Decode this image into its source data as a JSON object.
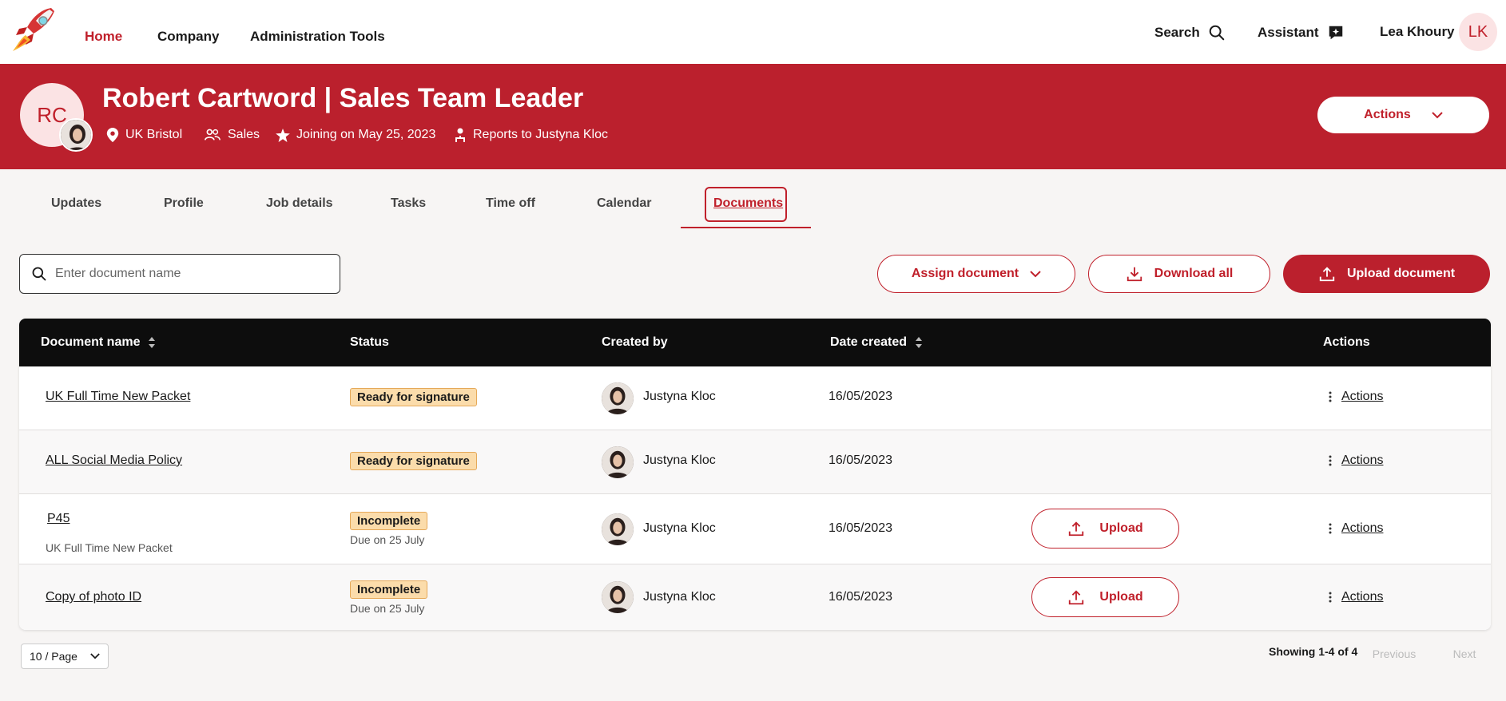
{
  "nav": {
    "links": [
      "Home",
      "Company",
      "Administration Tools"
    ],
    "search_label": "Search",
    "assistant_label": "Assistant",
    "user_name": "Lea Khoury",
    "user_initials": "LK"
  },
  "employee": {
    "initials": "RC",
    "title": "Robert Cartword | Sales Team Leader",
    "location": "UK Bristol",
    "department": "Sales",
    "joining": "Joining on May 25, 2023",
    "reports_to": "Reports to Justyna Kloc",
    "actions_label": "Actions"
  },
  "tabs": [
    "Updates",
    "Profile",
    "Job details",
    "Tasks",
    "Time off",
    "Calendar",
    "Documents"
  ],
  "toolbar": {
    "search_placeholder": "Enter document name",
    "assign_label": "Assign document",
    "download_label": "Download all",
    "upload_label": "Upload document"
  },
  "table": {
    "headers": {
      "name": "Document name",
      "status": "Status",
      "created_by": "Created by",
      "date": "Date created",
      "actions": "Actions"
    },
    "rows": [
      {
        "name": "UK Full Time New Packet",
        "sub": "",
        "status": "Ready for signature",
        "due": "",
        "creator": "Justyna Kloc",
        "date": "16/05/2023",
        "upload": "",
        "actions": "Actions"
      },
      {
        "name": "ALL Social Media Policy",
        "sub": "",
        "status": "Ready for signature",
        "due": "",
        "creator": "Justyna Kloc",
        "date": "16/05/2023",
        "upload": "",
        "actions": "Actions"
      },
      {
        "name": "P45",
        "sub": "UK Full Time New Packet",
        "status": "Incomplete",
        "due": "Due on 25 July",
        "creator": "Justyna Kloc",
        "date": "16/05/2023",
        "upload": "Upload",
        "actions": "Actions"
      },
      {
        "name": "Copy of photo ID",
        "sub": "",
        "status": "Incomplete",
        "due": "Due on 25 July",
        "creator": "Justyna Kloc",
        "date": "16/05/2023",
        "upload": "Upload",
        "actions": "Actions"
      }
    ]
  },
  "pagination": {
    "per_page": "10 / Page",
    "showing": "Showing 1-4 of 4",
    "previous": "Previous",
    "next": "Next"
  },
  "colors": {
    "brand_red": "#bb202d",
    "accent_red": "#c0202b",
    "badge_bg": "#fbdcab",
    "header_bg": "#0d0d0d"
  }
}
